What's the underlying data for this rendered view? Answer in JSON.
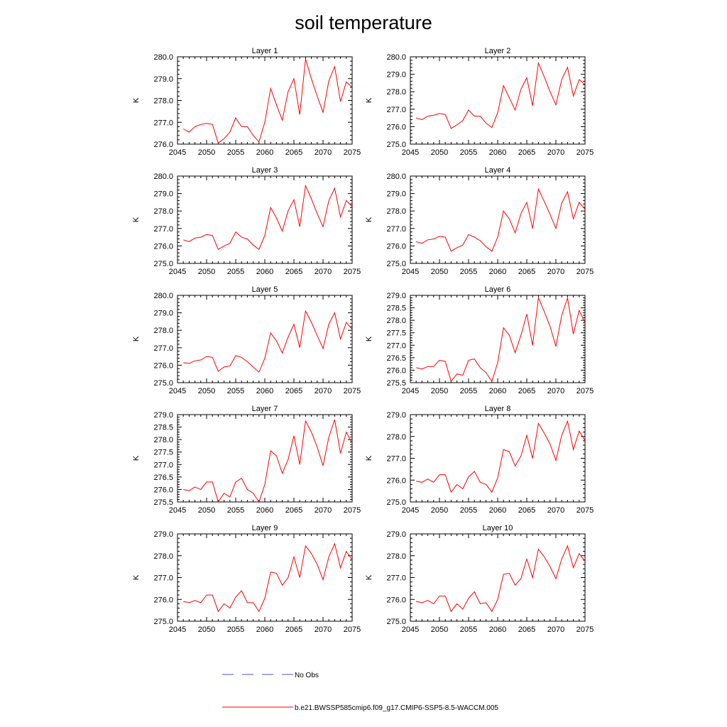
{
  "title": "soil temperature",
  "colors": {
    "series": "#ff0000",
    "obs": "#5050c0",
    "axis": "#000000"
  },
  "legend": {
    "obs_label": "No Obs",
    "model_label": "b.e21.BWSSP585cmip6.f09_g17.CMIP6-SSP5-8.5-WACCM.005"
  },
  "chart_data": [
    {
      "type": "line",
      "title": "Layer 1",
      "ylabel": "K",
      "xlim": [
        2045,
        2075
      ],
      "ylim": [
        276.0,
        280.0
      ],
      "xticks": [
        2045,
        2050,
        2055,
        2060,
        2065,
        2070,
        2075
      ],
      "yticks": [
        276.0,
        277.0,
        278.0,
        279.0,
        280.0
      ],
      "x": [
        2046,
        2047,
        2048,
        2049,
        2050,
        2051,
        2052,
        2053,
        2054,
        2055,
        2056,
        2057,
        2058,
        2059,
        2060,
        2061,
        2062,
        2063,
        2064,
        2065,
        2066,
        2067,
        2068,
        2069,
        2070,
        2071,
        2072,
        2073,
        2074,
        2075
      ],
      "series": [
        {
          "name": "b.e21.BWSSP585cmip6.f09_g17.CMIP6-SSP5-8.5-WACCM.005",
          "values": [
            276.7,
            276.55,
            276.8,
            276.9,
            276.95,
            276.9,
            276.05,
            276.25,
            276.55,
            277.2,
            276.8,
            276.8,
            276.4,
            276.1,
            277.0,
            278.55,
            277.8,
            277.1,
            278.4,
            279.0,
            277.35,
            279.9,
            279.0,
            278.2,
            277.45,
            278.9,
            279.55,
            277.95,
            278.85,
            278.6
          ]
        }
      ]
    },
    {
      "type": "line",
      "title": "Layer 2",
      "ylabel": "K",
      "xlim": [
        2045,
        2075
      ],
      "ylim": [
        275.0,
        280.0
      ],
      "xticks": [
        2045,
        2050,
        2055,
        2060,
        2065,
        2070,
        2075
      ],
      "yticks": [
        275.0,
        276.0,
        277.0,
        278.0,
        279.0,
        280.0
      ],
      "x": [
        2046,
        2047,
        2048,
        2049,
        2050,
        2051,
        2052,
        2053,
        2054,
        2055,
        2056,
        2057,
        2058,
        2059,
        2060,
        2061,
        2062,
        2063,
        2064,
        2065,
        2066,
        2067,
        2068,
        2069,
        2070,
        2071,
        2072,
        2073,
        2074,
        2075
      ],
      "series": [
        {
          "name": "b.e21.BWSSP585cmip6.f09_g17.CMIP6-SSP5-8.5-WACCM.005",
          "values": [
            276.5,
            276.4,
            276.6,
            276.65,
            276.75,
            276.7,
            275.9,
            276.1,
            276.35,
            276.95,
            276.6,
            276.6,
            276.2,
            275.95,
            276.8,
            278.35,
            277.65,
            276.95,
            278.15,
            278.8,
            277.2,
            279.65,
            278.85,
            278.0,
            277.25,
            278.7,
            279.4,
            277.75,
            278.7,
            278.4
          ]
        }
      ]
    },
    {
      "type": "line",
      "title": "Layer 3",
      "ylabel": "K",
      "xlim": [
        2045,
        2075
      ],
      "ylim": [
        275.0,
        280.0
      ],
      "xticks": [
        2045,
        2050,
        2055,
        2060,
        2065,
        2070,
        2075
      ],
      "yticks": [
        275.0,
        276.0,
        277.0,
        278.0,
        279.0,
        280.0
      ],
      "x": [
        2046,
        2047,
        2048,
        2049,
        2050,
        2051,
        2052,
        2053,
        2054,
        2055,
        2056,
        2057,
        2058,
        2059,
        2060,
        2061,
        2062,
        2063,
        2064,
        2065,
        2066,
        2067,
        2068,
        2069,
        2070,
        2071,
        2072,
        2073,
        2074,
        2075
      ],
      "series": [
        {
          "name": "b.e21.BWSSP585cmip6.f09_g17.CMIP6-SSP5-8.5-WACCM.005",
          "values": [
            276.35,
            276.25,
            276.45,
            276.5,
            276.65,
            276.6,
            275.8,
            276.0,
            276.15,
            276.8,
            276.5,
            276.4,
            276.05,
            275.8,
            276.6,
            278.2,
            277.6,
            276.85,
            278.0,
            278.65,
            277.1,
            279.45,
            278.7,
            277.85,
            277.1,
            278.6,
            279.3,
            277.65,
            278.6,
            278.25
          ]
        }
      ]
    },
    {
      "type": "line",
      "title": "Layer 4",
      "ylabel": "K",
      "xlim": [
        2045,
        2075
      ],
      "ylim": [
        275.0,
        280.0
      ],
      "xticks": [
        2045,
        2050,
        2055,
        2060,
        2065,
        2070,
        2075
      ],
      "yticks": [
        275.0,
        276.0,
        277.0,
        278.0,
        279.0,
        280.0
      ],
      "x": [
        2046,
        2047,
        2048,
        2049,
        2050,
        2051,
        2052,
        2053,
        2054,
        2055,
        2056,
        2057,
        2058,
        2059,
        2060,
        2061,
        2062,
        2063,
        2064,
        2065,
        2066,
        2067,
        2068,
        2069,
        2070,
        2071,
        2072,
        2073,
        2074,
        2075
      ],
      "series": [
        {
          "name": "b.e21.BWSSP585cmip6.f09_g17.CMIP6-SSP5-8.5-WACCM.005",
          "values": [
            276.25,
            276.15,
            276.35,
            276.4,
            276.55,
            276.5,
            275.7,
            275.9,
            276.05,
            276.65,
            276.5,
            276.3,
            275.95,
            275.7,
            276.5,
            278.0,
            277.55,
            276.75,
            277.85,
            278.5,
            277.0,
            279.25,
            278.55,
            277.8,
            277.0,
            278.45,
            279.1,
            277.55,
            278.5,
            278.1
          ]
        }
      ]
    },
    {
      "type": "line",
      "title": "Layer 5",
      "ylabel": "K",
      "xlim": [
        2045,
        2075
      ],
      "ylim": [
        275.0,
        280.0
      ],
      "xticks": [
        2045,
        2050,
        2055,
        2060,
        2065,
        2070,
        2075
      ],
      "yticks": [
        275.0,
        276.0,
        277.0,
        278.0,
        279.0,
        280.0
      ],
      "x": [
        2046,
        2047,
        2048,
        2049,
        2050,
        2051,
        2052,
        2053,
        2054,
        2055,
        2056,
        2057,
        2058,
        2059,
        2060,
        2061,
        2062,
        2063,
        2064,
        2065,
        2066,
        2067,
        2068,
        2069,
        2070,
        2071,
        2072,
        2073,
        2074,
        2075
      ],
      "series": [
        {
          "name": "b.e21.BWSSP585cmip6.f09_g17.CMIP6-SSP5-8.5-WACCM.005",
          "values": [
            276.15,
            276.1,
            276.25,
            276.3,
            276.5,
            276.45,
            275.65,
            275.9,
            275.95,
            276.55,
            276.45,
            276.2,
            275.9,
            275.6,
            276.4,
            277.85,
            277.4,
            276.7,
            277.6,
            278.35,
            277.0,
            279.1,
            278.45,
            277.7,
            276.95,
            278.35,
            279.0,
            277.5,
            278.45,
            278.05
          ]
        }
      ]
    },
    {
      "type": "line",
      "title": "Layer 6",
      "ylabel": "K",
      "xlim": [
        2045,
        2075
      ],
      "ylim": [
        275.5,
        279.0
      ],
      "xticks": [
        2045,
        2050,
        2055,
        2060,
        2065,
        2070,
        2075
      ],
      "yticks": [
        275.5,
        276.0,
        276.5,
        277.0,
        277.5,
        278.0,
        278.5,
        279.0
      ],
      "x": [
        2046,
        2047,
        2048,
        2049,
        2050,
        2051,
        2052,
        2053,
        2054,
        2055,
        2056,
        2057,
        2058,
        2059,
        2060,
        2061,
        2062,
        2063,
        2064,
        2065,
        2066,
        2067,
        2068,
        2069,
        2070,
        2071,
        2072,
        2073,
        2074,
        2075
      ],
      "series": [
        {
          "name": "b.e21.BWSSP585cmip6.f09_g17.CMIP6-SSP5-8.5-WACCM.005",
          "values": [
            276.1,
            276.05,
            276.15,
            276.15,
            276.4,
            276.35,
            275.55,
            275.85,
            275.8,
            276.4,
            276.45,
            276.1,
            275.9,
            275.55,
            276.3,
            277.7,
            277.4,
            276.7,
            277.4,
            278.25,
            277.0,
            278.9,
            278.35,
            277.75,
            276.95,
            278.2,
            278.9,
            277.45,
            278.4,
            277.9
          ]
        }
      ]
    },
    {
      "type": "line",
      "title": "Layer 7",
      "ylabel": "K",
      "xlim": [
        2045,
        2075
      ],
      "ylim": [
        275.5,
        279.0
      ],
      "xticks": [
        2045,
        2050,
        2055,
        2060,
        2065,
        2070,
        2075
      ],
      "yticks": [
        275.5,
        276.0,
        276.5,
        277.0,
        277.5,
        278.0,
        278.5,
        279.0
      ],
      "x": [
        2046,
        2047,
        2048,
        2049,
        2050,
        2051,
        2052,
        2053,
        2054,
        2055,
        2056,
        2057,
        2058,
        2059,
        2060,
        2061,
        2062,
        2063,
        2064,
        2065,
        2066,
        2067,
        2068,
        2069,
        2070,
        2071,
        2072,
        2073,
        2074,
        2075
      ],
      "series": [
        {
          "name": "b.e21.BWSSP585cmip6.f09_g17.CMIP6-SSP5-8.5-WACCM.005",
          "values": [
            276.0,
            275.95,
            276.1,
            276.0,
            276.3,
            276.3,
            275.5,
            275.85,
            275.7,
            276.3,
            276.45,
            276.0,
            275.85,
            275.5,
            276.2,
            277.55,
            277.35,
            276.65,
            277.2,
            278.15,
            277.0,
            278.75,
            278.3,
            277.7,
            276.95,
            278.1,
            278.8,
            277.45,
            278.3,
            277.85
          ]
        }
      ]
    },
    {
      "type": "line",
      "title": "Layer 8",
      "ylabel": "K",
      "xlim": [
        2045,
        2075
      ],
      "ylim": [
        275.0,
        279.0
      ],
      "xticks": [
        2045,
        2050,
        2055,
        2060,
        2065,
        2070,
        2075
      ],
      "yticks": [
        275.0,
        276.0,
        277.0,
        278.0,
        279.0
      ],
      "x": [
        2046,
        2047,
        2048,
        2049,
        2050,
        2051,
        2052,
        2053,
        2054,
        2055,
        2056,
        2057,
        2058,
        2059,
        2060,
        2061,
        2062,
        2063,
        2064,
        2065,
        2066,
        2067,
        2068,
        2069,
        2070,
        2071,
        2072,
        2073,
        2074,
        2075
      ],
      "series": [
        {
          "name": "b.e21.BWSSP585cmip6.f09_g17.CMIP6-SSP5-8.5-WACCM.005",
          "values": [
            275.95,
            275.9,
            276.05,
            275.9,
            276.25,
            276.25,
            275.45,
            275.8,
            275.6,
            276.15,
            276.4,
            275.9,
            275.8,
            275.45,
            276.1,
            277.4,
            277.3,
            276.65,
            277.1,
            278.05,
            277.0,
            278.6,
            278.15,
            277.65,
            276.9,
            278.05,
            278.7,
            277.4,
            278.25,
            277.8
          ]
        }
      ]
    },
    {
      "type": "line",
      "title": "Layer 9",
      "ylabel": "K",
      "xlim": [
        2045,
        2075
      ],
      "ylim": [
        275.0,
        279.0
      ],
      "xticks": [
        2045,
        2050,
        2055,
        2060,
        2065,
        2070,
        2075
      ],
      "yticks": [
        275.0,
        276.0,
        277.0,
        278.0,
        279.0
      ],
      "x": [
        2046,
        2047,
        2048,
        2049,
        2050,
        2051,
        2052,
        2053,
        2054,
        2055,
        2056,
        2057,
        2058,
        2059,
        2060,
        2061,
        2062,
        2063,
        2064,
        2065,
        2066,
        2067,
        2068,
        2069,
        2070,
        2071,
        2072,
        2073,
        2074,
        2075
      ],
      "series": [
        {
          "name": "b.e21.BWSSP585cmip6.f09_g17.CMIP6-SSP5-8.5-WACCM.005",
          "values": [
            275.9,
            275.85,
            275.95,
            275.85,
            276.2,
            276.2,
            275.45,
            275.8,
            275.6,
            276.1,
            276.4,
            275.85,
            275.85,
            275.45,
            276.05,
            277.25,
            277.2,
            276.65,
            277.0,
            277.95,
            277.0,
            278.45,
            278.1,
            277.6,
            276.9,
            277.95,
            278.55,
            277.45,
            278.2,
            277.8
          ]
        }
      ]
    },
    {
      "type": "line",
      "title": "Layer 10",
      "ylabel": "K",
      "xlim": [
        2045,
        2075
      ],
      "ylim": [
        275.0,
        279.0
      ],
      "xticks": [
        2045,
        2050,
        2055,
        2060,
        2065,
        2070,
        2075
      ],
      "yticks": [
        275.0,
        276.0,
        277.0,
        278.0,
        279.0
      ],
      "x": [
        2046,
        2047,
        2048,
        2049,
        2050,
        2051,
        2052,
        2053,
        2054,
        2055,
        2056,
        2057,
        2058,
        2059,
        2060,
        2061,
        2062,
        2063,
        2064,
        2065,
        2066,
        2067,
        2068,
        2069,
        2070,
        2071,
        2072,
        2073,
        2074,
        2075
      ],
      "series": [
        {
          "name": "b.e21.BWSSP585cmip6.f09_g17.CMIP6-SSP5-8.5-WACCM.005",
          "values": [
            275.9,
            275.85,
            275.95,
            275.8,
            276.15,
            276.15,
            275.45,
            275.8,
            275.55,
            276.05,
            276.35,
            275.8,
            275.85,
            275.45,
            276.0,
            277.15,
            277.2,
            276.65,
            276.95,
            277.85,
            277.0,
            278.3,
            277.95,
            277.5,
            276.95,
            277.85,
            278.45,
            277.45,
            278.1,
            277.75
          ]
        }
      ]
    }
  ]
}
